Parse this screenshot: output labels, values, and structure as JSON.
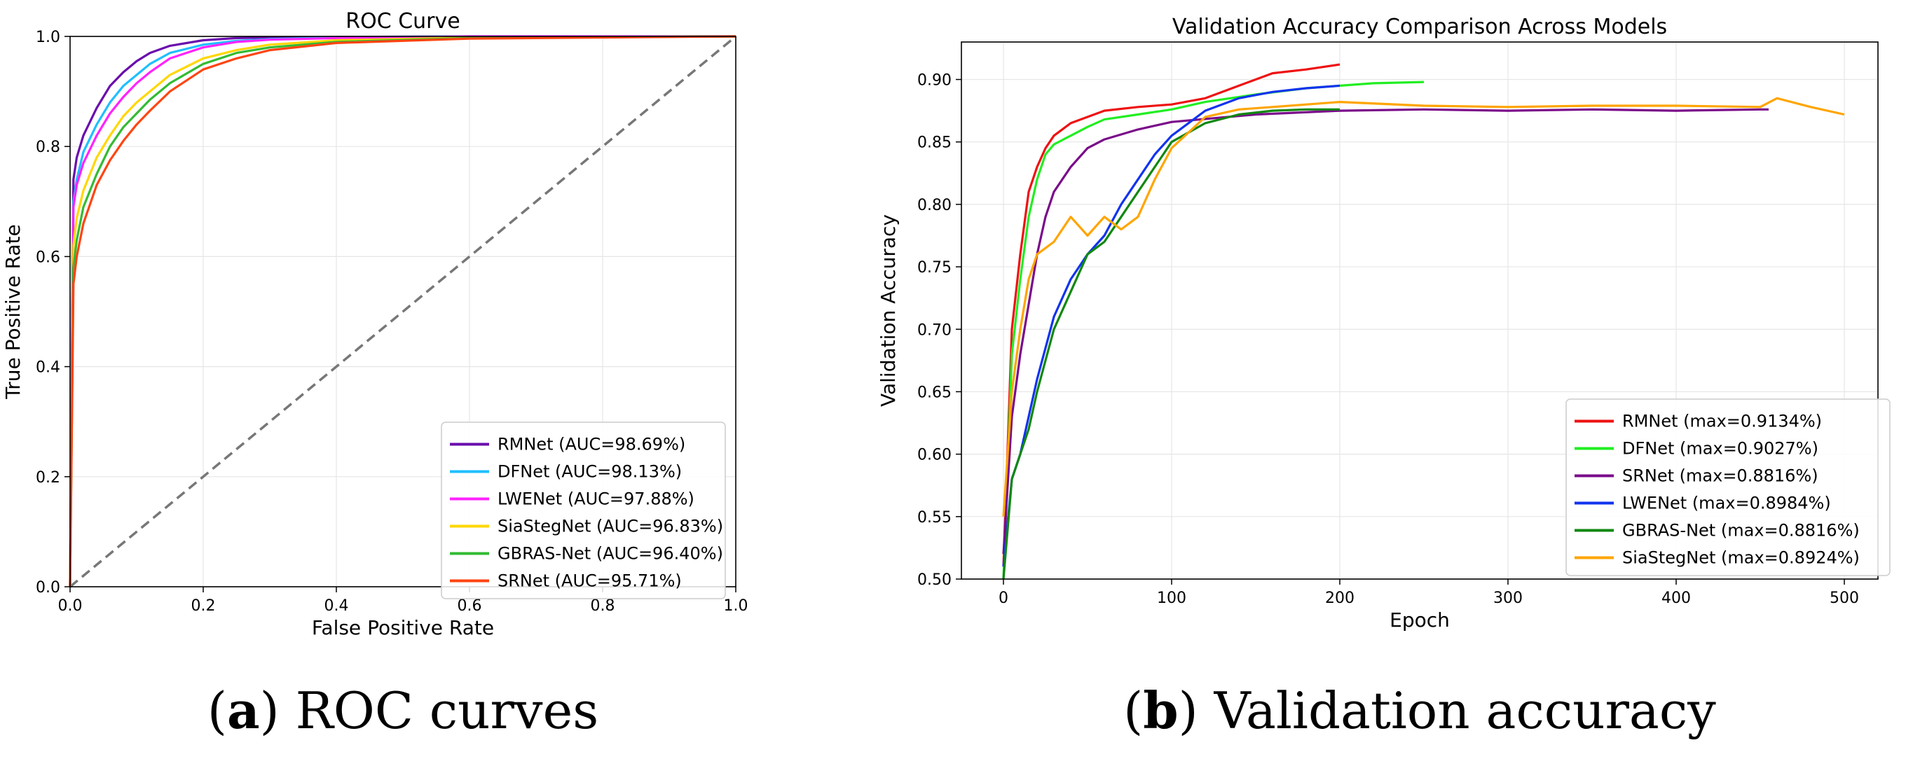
{
  "chart_data": [
    {
      "type": "line",
      "title": "ROC Curve",
      "xlabel": "False Positive Rate",
      "ylabel": "True Positive Rate",
      "xlim": [
        0,
        1
      ],
      "ylim": [
        0,
        1
      ],
      "xticks": [
        "0.0",
        "0.2",
        "0.4",
        "0.6",
        "0.8",
        "1.0"
      ],
      "yticks": [
        "0.0",
        "0.2",
        "0.4",
        "0.6",
        "0.8",
        "1.0"
      ],
      "grid": true,
      "legend_position": "lower-right",
      "caption_letter": "a",
      "caption_text": " ROC curves",
      "diagonal_reference": {
        "style": "dashed",
        "color": "#777777",
        "x": [
          0,
          1
        ],
        "y": [
          0,
          1
        ]
      },
      "series": [
        {
          "name": "RMNet (AUC=98.69%)",
          "color": "#6a0dad",
          "x": [
            0,
            0.005,
            0.01,
            0.02,
            0.04,
            0.06,
            0.08,
            0.1,
            0.12,
            0.15,
            0.2,
            0.25,
            0.3,
            0.4,
            0.6,
            1.0
          ],
          "y": [
            0,
            0.74,
            0.78,
            0.82,
            0.87,
            0.91,
            0.935,
            0.955,
            0.97,
            0.983,
            0.993,
            0.997,
            0.998,
            0.999,
            1.0,
            1.0
          ]
        },
        {
          "name": "DFNet (AUC=98.13%)",
          "color": "#1fbfff",
          "x": [
            0,
            0.005,
            0.01,
            0.02,
            0.04,
            0.06,
            0.08,
            0.1,
            0.12,
            0.15,
            0.2,
            0.25,
            0.3,
            0.4,
            0.6,
            1.0
          ],
          "y": [
            0,
            0.7,
            0.74,
            0.79,
            0.84,
            0.88,
            0.91,
            0.93,
            0.95,
            0.97,
            0.985,
            0.992,
            0.995,
            0.998,
            1.0,
            1.0
          ]
        },
        {
          "name": "LWENet (AUC=97.88%)",
          "color": "#ff22ff",
          "x": [
            0,
            0.005,
            0.01,
            0.02,
            0.04,
            0.06,
            0.08,
            0.1,
            0.12,
            0.15,
            0.2,
            0.25,
            0.3,
            0.4,
            0.6,
            1.0
          ],
          "y": [
            0,
            0.69,
            0.73,
            0.77,
            0.82,
            0.86,
            0.89,
            0.915,
            0.935,
            0.96,
            0.98,
            0.99,
            0.994,
            0.997,
            1.0,
            1.0
          ]
        },
        {
          "name": "SiaStegNet (AUC=96.83%)",
          "color": "#ffd700",
          "x": [
            0,
            0.005,
            0.01,
            0.02,
            0.04,
            0.06,
            0.08,
            0.1,
            0.12,
            0.15,
            0.2,
            0.25,
            0.3,
            0.4,
            0.6,
            1.0
          ],
          "y": [
            0,
            0.62,
            0.67,
            0.72,
            0.78,
            0.82,
            0.855,
            0.88,
            0.9,
            0.93,
            0.96,
            0.975,
            0.985,
            0.993,
            0.998,
            1.0
          ]
        },
        {
          "name": "GBRAS-Net (AUC=96.40%)",
          "color": "#33bb33",
          "x": [
            0,
            0.005,
            0.01,
            0.02,
            0.04,
            0.06,
            0.08,
            0.1,
            0.12,
            0.15,
            0.2,
            0.25,
            0.3,
            0.4,
            0.6,
            1.0
          ],
          "y": [
            0,
            0.58,
            0.63,
            0.69,
            0.75,
            0.8,
            0.835,
            0.86,
            0.885,
            0.915,
            0.95,
            0.97,
            0.98,
            0.99,
            0.997,
            1.0
          ]
        },
        {
          "name": "SRNet (AUC=95.71%)",
          "color": "#ff4411",
          "x": [
            0,
            0.005,
            0.01,
            0.02,
            0.04,
            0.06,
            0.08,
            0.1,
            0.12,
            0.15,
            0.2,
            0.25,
            0.3,
            0.4,
            0.6,
            1.0
          ],
          "y": [
            0,
            0.55,
            0.6,
            0.66,
            0.73,
            0.775,
            0.81,
            0.84,
            0.865,
            0.9,
            0.94,
            0.96,
            0.975,
            0.988,
            0.996,
            1.0
          ]
        }
      ]
    },
    {
      "type": "line",
      "title": "Validation Accuracy Comparison Across Models",
      "xlabel": "Epoch",
      "ylabel": "Validation Accuracy",
      "xlim": [
        -25,
        520
      ],
      "ylim": [
        0.5,
        0.93
      ],
      "xticks": [
        "0",
        "100",
        "200",
        "300",
        "400",
        "500"
      ],
      "yticks": [
        "0.50",
        "0.55",
        "0.60",
        "0.65",
        "0.70",
        "0.75",
        "0.80",
        "0.85",
        "0.90"
      ],
      "grid": true,
      "legend_position": "lower-right",
      "caption_letter": "b",
      "caption_text": " Validation accuracy",
      "series": [
        {
          "name": "RMNet (max=0.9134%)",
          "color": "#ee1111",
          "x": [
            0,
            5,
            10,
            15,
            20,
            25,
            30,
            40,
            50,
            60,
            80,
            100,
            120,
            140,
            160,
            180,
            200
          ],
          "y": [
            0.51,
            0.7,
            0.76,
            0.81,
            0.83,
            0.845,
            0.855,
            0.865,
            0.87,
            0.875,
            0.878,
            0.88,
            0.885,
            0.895,
            0.905,
            0.908,
            0.912
          ]
        },
        {
          "name": "DFNet (max=0.9027%)",
          "color": "#22ee22",
          "x": [
            0,
            5,
            10,
            15,
            20,
            25,
            30,
            40,
            50,
            60,
            80,
            100,
            120,
            150,
            180,
            200,
            220,
            250
          ],
          "y": [
            0.5,
            0.68,
            0.74,
            0.79,
            0.82,
            0.84,
            0.848,
            0.855,
            0.862,
            0.868,
            0.872,
            0.876,
            0.882,
            0.888,
            0.893,
            0.895,
            0.897,
            0.898
          ]
        },
        {
          "name": "SRNet (max=0.8816%)",
          "color": "#7a0a8a",
          "x": [
            0,
            5,
            10,
            15,
            20,
            25,
            30,
            40,
            50,
            60,
            80,
            100,
            150,
            200,
            250,
            300,
            350,
            400,
            450,
            455
          ],
          "y": [
            0.52,
            0.63,
            0.68,
            0.72,
            0.76,
            0.79,
            0.81,
            0.83,
            0.845,
            0.852,
            0.86,
            0.866,
            0.872,
            0.875,
            0.876,
            0.875,
            0.876,
            0.875,
            0.876,
            0.876
          ]
        },
        {
          "name": "LWENet (max=0.8984%)",
          "color": "#1133ee",
          "x": [
            0,
            5,
            10,
            15,
            20,
            30,
            40,
            50,
            60,
            70,
            80,
            90,
            100,
            120,
            140,
            160,
            180,
            200
          ],
          "y": [
            0.51,
            0.58,
            0.6,
            0.63,
            0.66,
            0.71,
            0.74,
            0.76,
            0.775,
            0.8,
            0.82,
            0.84,
            0.855,
            0.875,
            0.885,
            0.89,
            0.893,
            0.895
          ]
        },
        {
          "name": "GBRAS-Net (max=0.8816%)",
          "color": "#118811",
          "x": [
            0,
            5,
            10,
            15,
            20,
            30,
            40,
            50,
            60,
            70,
            80,
            90,
            100,
            120,
            140,
            160,
            180,
            200
          ],
          "y": [
            0.5,
            0.58,
            0.6,
            0.62,
            0.65,
            0.7,
            0.73,
            0.76,
            0.77,
            0.79,
            0.81,
            0.83,
            0.85,
            0.865,
            0.872,
            0.875,
            0.876,
            0.876
          ]
        },
        {
          "name": "SiaStegNet (max=0.8924%)",
          "color": "#ffa500",
          "x": [
            0,
            5,
            10,
            15,
            20,
            30,
            40,
            50,
            60,
            70,
            80,
            90,
            100,
            120,
            140,
            160,
            200,
            250,
            300,
            350,
            400,
            450,
            460,
            480,
            500
          ],
          "y": [
            0.55,
            0.65,
            0.7,
            0.74,
            0.76,
            0.77,
            0.79,
            0.775,
            0.79,
            0.78,
            0.79,
            0.82,
            0.845,
            0.87,
            0.876,
            0.878,
            0.882,
            0.879,
            0.878,
            0.879,
            0.879,
            0.878,
            0.885,
            0.878,
            0.872
          ]
        }
      ]
    }
  ]
}
